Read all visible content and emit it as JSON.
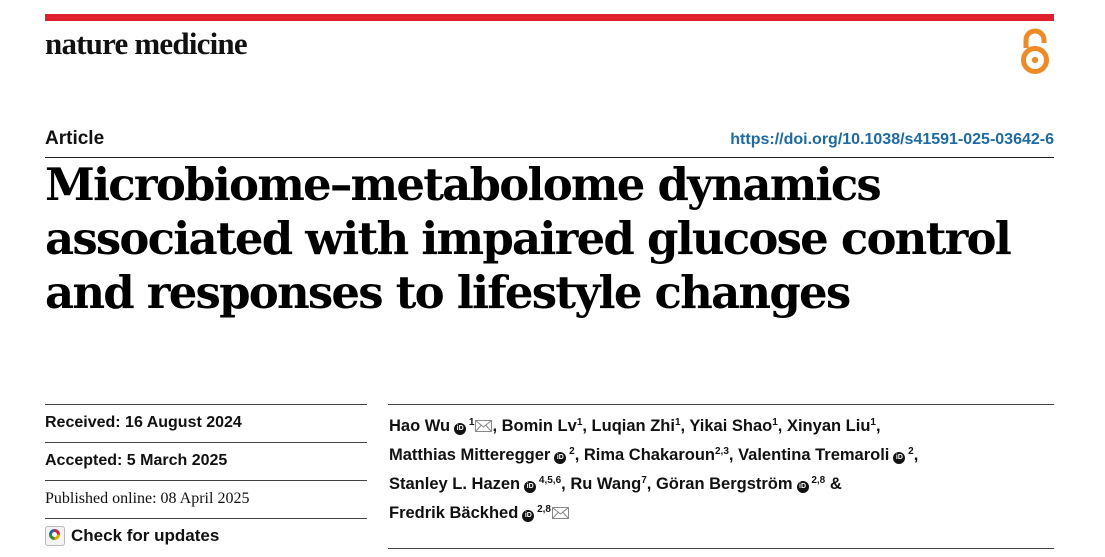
{
  "journal": "nature medicine",
  "article_type": "Article",
  "doi": "https://doi.org/10.1038/s41591-025-03642-6",
  "title_lines": [
    "Microbiome–metabolome dynamics",
    "associated with impaired glucose control",
    "and responses to lifestyle changes"
  ],
  "dates": {
    "received": "Received: 16 August 2024",
    "accepted": "Accepted: 5 March 2025",
    "published": "Published online: 08 April 2025"
  },
  "check_updates": "Check for updates",
  "orcid_glyph": "iD",
  "authors": [
    {
      "name": "Hao Wu",
      "orcid": true,
      "aff": "1",
      "email": true,
      "sep": ", "
    },
    {
      "name": "Bomin Lv",
      "orcid": false,
      "aff": "1",
      "email": false,
      "sep": ", "
    },
    {
      "name": "Luqian Zhi",
      "orcid": false,
      "aff": "1",
      "email": false,
      "sep": ", "
    },
    {
      "name": "Yikai Shao",
      "orcid": false,
      "aff": "1",
      "email": false,
      "sep": ", "
    },
    {
      "name": "Xinyan Liu",
      "orcid": false,
      "aff": "1",
      "email": false,
      "sep": ", "
    },
    {
      "name": "Matthias Mitteregger",
      "orcid": true,
      "aff": "2",
      "email": false,
      "sep": ", "
    },
    {
      "name": "Rima Chakaroun",
      "orcid": false,
      "aff": "2,3",
      "email": false,
      "sep": ", "
    },
    {
      "name": "Valentina Tremaroli",
      "orcid": true,
      "aff": "2",
      "email": false,
      "sep": ", "
    },
    {
      "name": "Stanley L. Hazen",
      "orcid": true,
      "aff": "4,5,6",
      "email": false,
      "sep": ", "
    },
    {
      "name": "Ru Wang",
      "orcid": false,
      "aff": "7",
      "email": false,
      "sep": ", "
    },
    {
      "name": "Göran Bergström",
      "orcid": true,
      "aff": "2,8",
      "email": false,
      "sep": " & "
    },
    {
      "name": "Fredrik Bäckhed",
      "orcid": true,
      "aff": "2,8",
      "email": true,
      "sep": ""
    }
  ],
  "colors": {
    "brand_red": "#e0202f",
    "open_access_orange": "#f08a24",
    "doi_link": "#1a6ba8"
  },
  "icons": [
    "open-access-icon",
    "orcid-icon",
    "email-icon",
    "check-for-updates-icon"
  ]
}
